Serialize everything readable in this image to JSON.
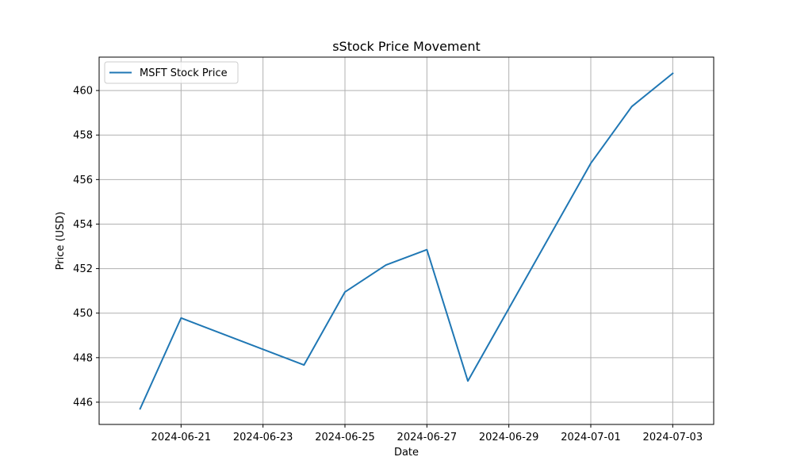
{
  "chart_data": {
    "type": "line",
    "title": "sStock Price Movement",
    "xlabel": "Date",
    "ylabel": "Price (USD)",
    "grid": true,
    "legend_position": "top-left",
    "xlim": [
      "2024-06-19",
      "2024-07-04"
    ],
    "ylim": [
      445.0,
      461.5
    ],
    "x_ticks": [
      "2024-06-21",
      "2024-06-23",
      "2024-06-25",
      "2024-06-27",
      "2024-06-29",
      "2024-07-01",
      "2024-07-03"
    ],
    "y_ticks": [
      446,
      448,
      450,
      452,
      454,
      456,
      458,
      460
    ],
    "colors": {
      "line": "#1f77b4",
      "grid": "#b0b0b0"
    },
    "series": [
      {
        "name": "MSFT Stock Price",
        "x": [
          "2024-06-20",
          "2024-06-21",
          "2024-06-24",
          "2024-06-25",
          "2024-06-26",
          "2024-06-27",
          "2024-06-28",
          "2024-07-01",
          "2024-07-02",
          "2024-07-03"
        ],
        "values": [
          445.7,
          449.78,
          447.67,
          450.95,
          452.16,
          452.85,
          446.95,
          456.73,
          459.28,
          460.77
        ]
      }
    ]
  }
}
